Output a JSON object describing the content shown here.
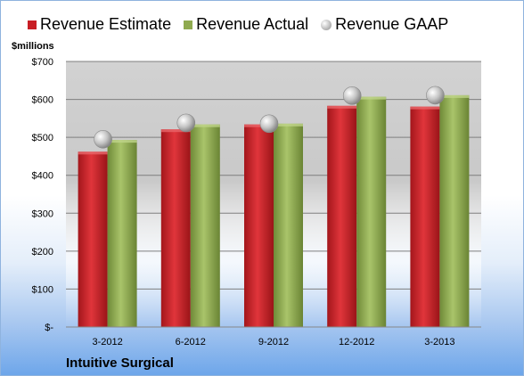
{
  "chart_data": {
    "type": "bar",
    "ylabel": "$millions",
    "categories": [
      "3-2012",
      "6-2012",
      "9-2012",
      "12-2012",
      "3-2013"
    ],
    "series": [
      {
        "name": "Revenue Estimate",
        "values": [
          462,
          521,
          534,
          583,
          581
        ],
        "color": "#c81e24"
      },
      {
        "name": "Revenue Actual",
        "values": [
          493,
          534,
          536,
          607,
          611
        ],
        "color": "#8faa4f"
      }
    ],
    "markers": {
      "name": "Revenue GAAP",
      "values": [
        495,
        538,
        536,
        610,
        611
      ],
      "color": "#bdbdbd"
    },
    "ylim": [
      0,
      700
    ],
    "yticks": [
      0,
      100,
      200,
      300,
      400,
      500,
      600,
      700
    ],
    "ytick_labels": [
      "$-",
      "$100",
      "$200",
      "$300",
      "$400",
      "$500",
      "$600",
      "$700"
    ],
    "grid": true,
    "legend_position": "top"
  },
  "legend": {
    "estimate": "Revenue Estimate",
    "actual": "Revenue Actual",
    "gaap": "Revenue GAAP"
  },
  "company": "Intuitive Surgical"
}
